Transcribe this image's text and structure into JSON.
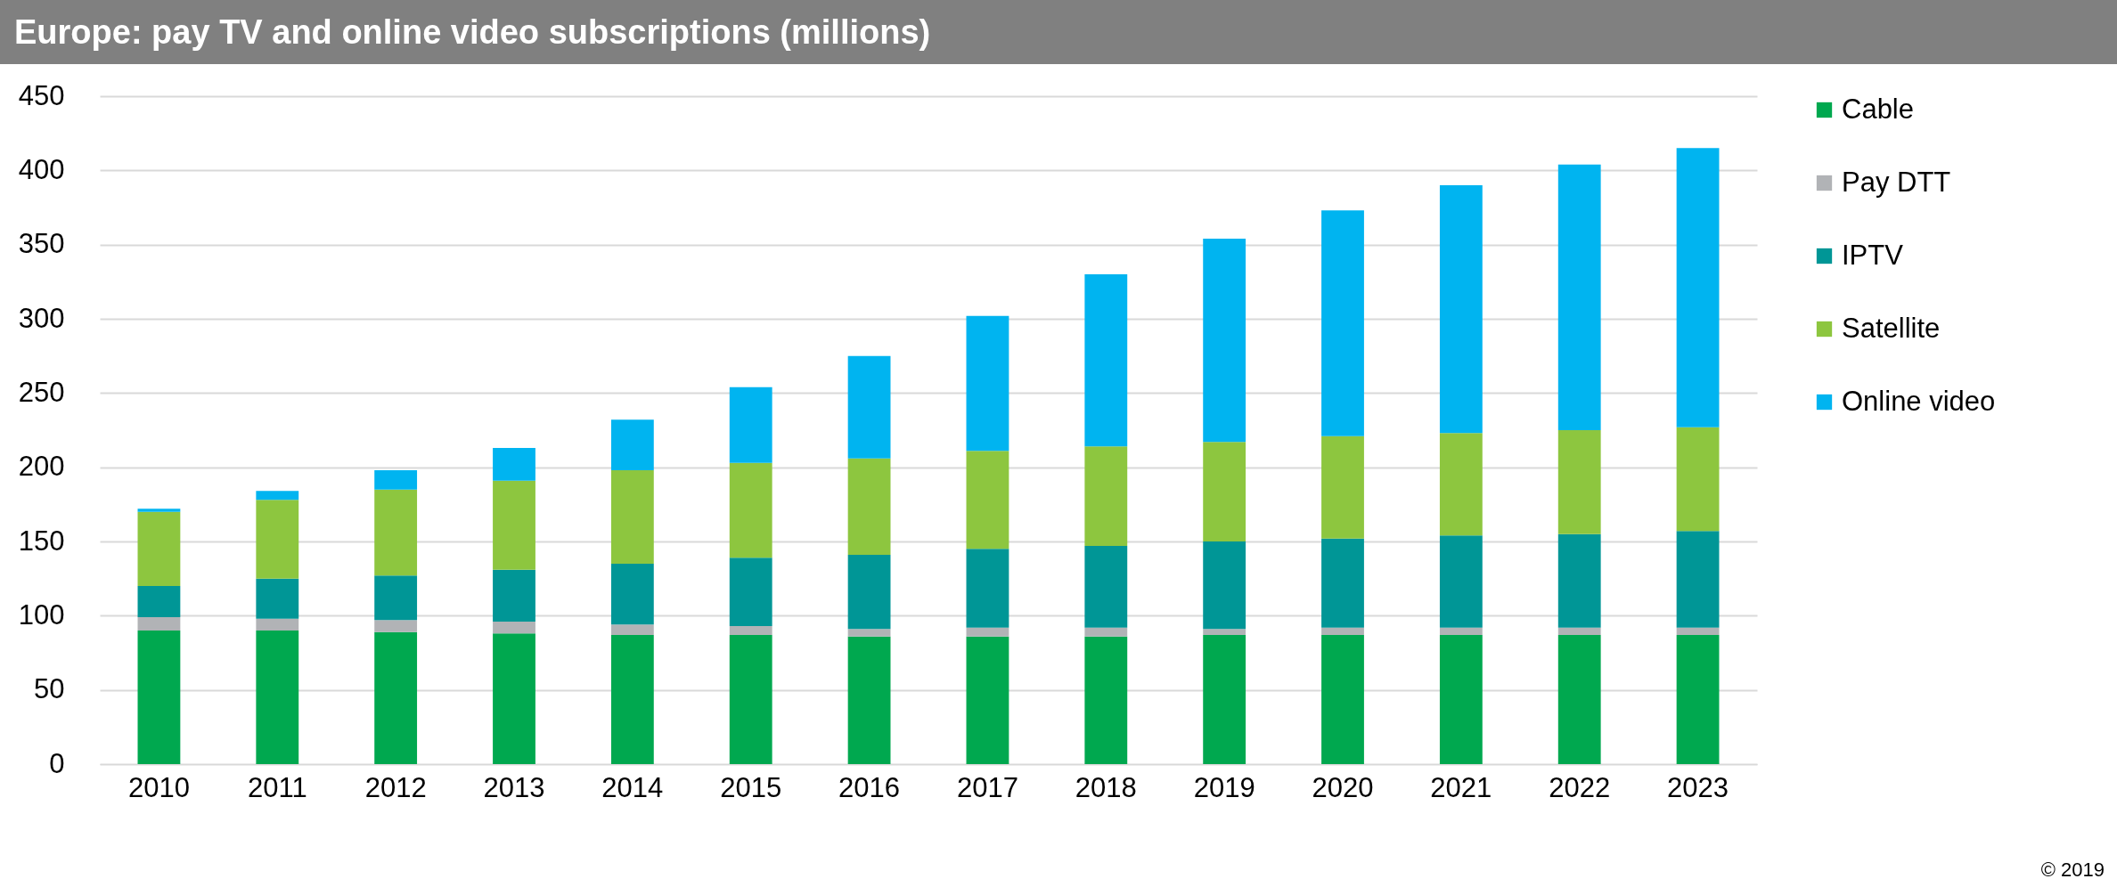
{
  "chart_data": {
    "type": "bar",
    "title": "Europe: pay TV and online video subscriptions (millions)",
    "categories": [
      "2010",
      "2011",
      "2012",
      "2013",
      "2014",
      "2015",
      "2016",
      "2017",
      "2018",
      "2019",
      "2020",
      "2021",
      "2022",
      "2023"
    ],
    "stacked": true,
    "series": [
      {
        "name": "Cable",
        "color": "#00a84f",
        "values": [
          90,
          90,
          89,
          88,
          87,
          87,
          86,
          86,
          86,
          87,
          87,
          87,
          87,
          87
        ]
      },
      {
        "name": "Pay DTT",
        "color": "#b1b3b6",
        "values": [
          9,
          8,
          8,
          8,
          7,
          6,
          5,
          6,
          6,
          4,
          5,
          5,
          5,
          5
        ]
      },
      {
        "name": "IPTV",
        "color": "#009696",
        "values": [
          21,
          27,
          30,
          35,
          41,
          46,
          50,
          53,
          55,
          59,
          60,
          62,
          63,
          65
        ]
      },
      {
        "name": "Satellite",
        "color": "#8dc63f",
        "values": [
          50,
          53,
          58,
          60,
          63,
          64,
          65,
          66,
          67,
          67,
          69,
          69,
          70,
          70
        ]
      },
      {
        "name": "Online video",
        "color": "#00b4f0",
        "values": [
          2,
          6,
          13,
          22,
          34,
          51,
          69,
          91,
          116,
          137,
          152,
          167,
          179,
          188
        ]
      }
    ],
    "ylim": [
      0,
      450
    ],
    "yticks": [
      0,
      50,
      100,
      150,
      200,
      250,
      300,
      350,
      400,
      450
    ],
    "grid": "y",
    "legend": "right",
    "annotations": [
      "© 2019"
    ]
  }
}
